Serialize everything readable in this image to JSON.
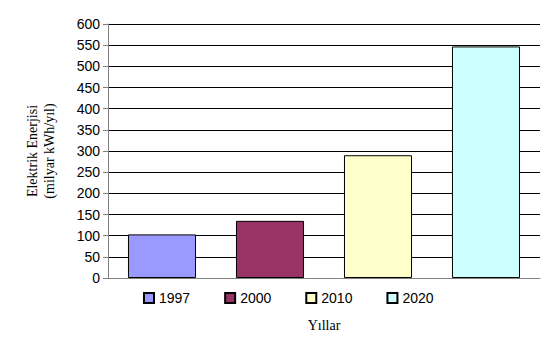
{
  "chart_data": {
    "type": "bar",
    "categories": [
      "1997",
      "2000",
      "2010",
      "2020"
    ],
    "values": [
      103,
      135,
      290,
      547
    ],
    "colors": [
      "#9999ff",
      "#993366",
      "#ffffcc",
      "#ccffff"
    ],
    "xlabel": "Yıllar",
    "ylabel": "Elektrik Enerjisi\n(milyar kWh/yıl)",
    "ylim": [
      0,
      600
    ],
    "yticks": [
      0,
      50,
      100,
      150,
      200,
      250,
      300,
      350,
      400,
      450,
      500,
      550,
      600
    ],
    "grid": true,
    "legend": "bottom",
    "tick_labels": "y"
  }
}
